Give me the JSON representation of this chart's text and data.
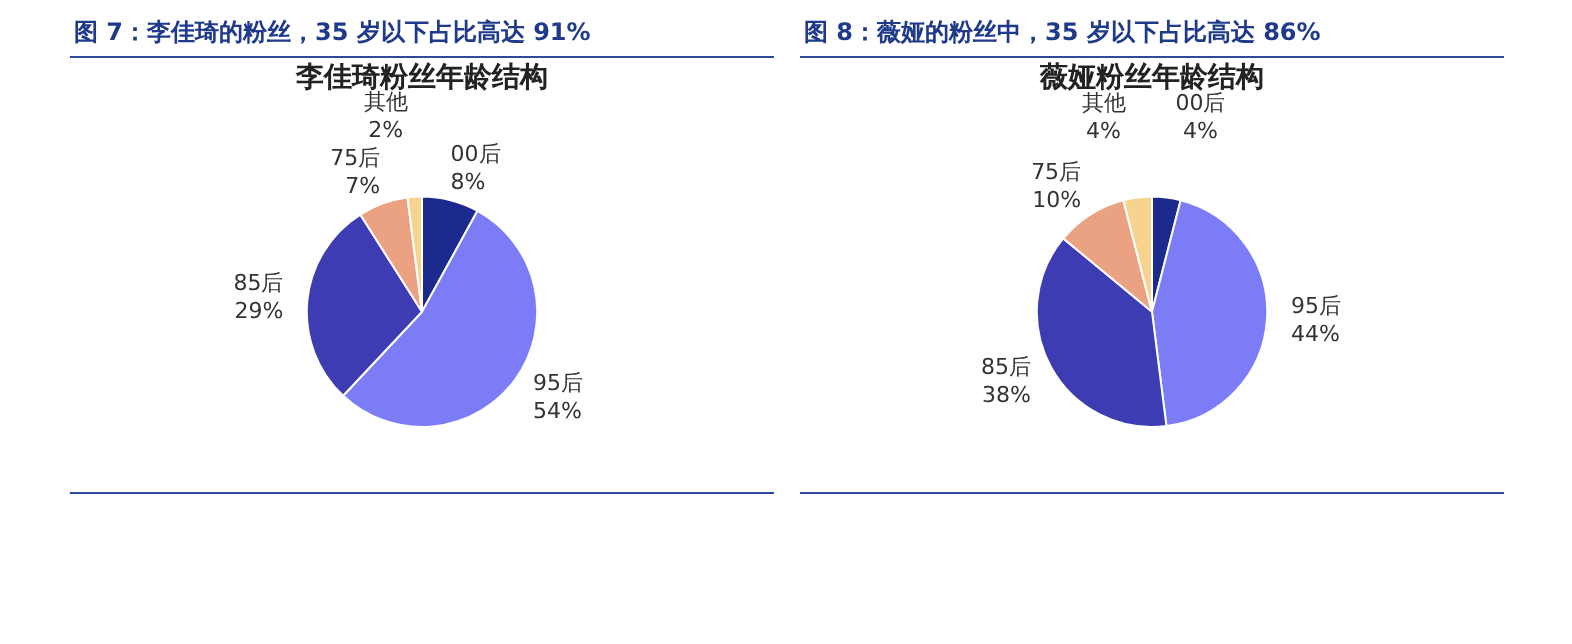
{
  "chart_data": [
    {
      "type": "pie",
      "title": "李佳琦粉丝年龄结构",
      "annotations": [
        "图 7：李佳琦的粉丝，35 岁以下占比高达 91%"
      ],
      "categories": [
        "00后",
        "95后",
        "85后",
        "75后",
        "其他"
      ],
      "values": [
        8,
        54,
        29,
        7,
        2
      ],
      "value_labels": [
        "8%",
        "54%",
        "29%",
        "7%",
        "2%"
      ],
      "colors": [
        "#1c2a8e",
        "#7b7cf6",
        "#3d3cb2",
        "#eba283",
        "#f6d38e"
      ],
      "legend": false
    },
    {
      "type": "pie",
      "title": "薇娅粉丝年龄结构",
      "annotations": [
        "图 8：薇娅的粉丝中，35 岁以下占比高达 86%"
      ],
      "categories": [
        "00后",
        "95后",
        "85后",
        "75后",
        "其他"
      ],
      "values": [
        4,
        44,
        38,
        10,
        4
      ],
      "value_labels": [
        "4%",
        "44%",
        "38%",
        "10%",
        "4%"
      ],
      "colors": [
        "#1c2a8e",
        "#7b7cf6",
        "#3d3cb2",
        "#eba283",
        "#f6d38e"
      ],
      "legend": false
    }
  ]
}
